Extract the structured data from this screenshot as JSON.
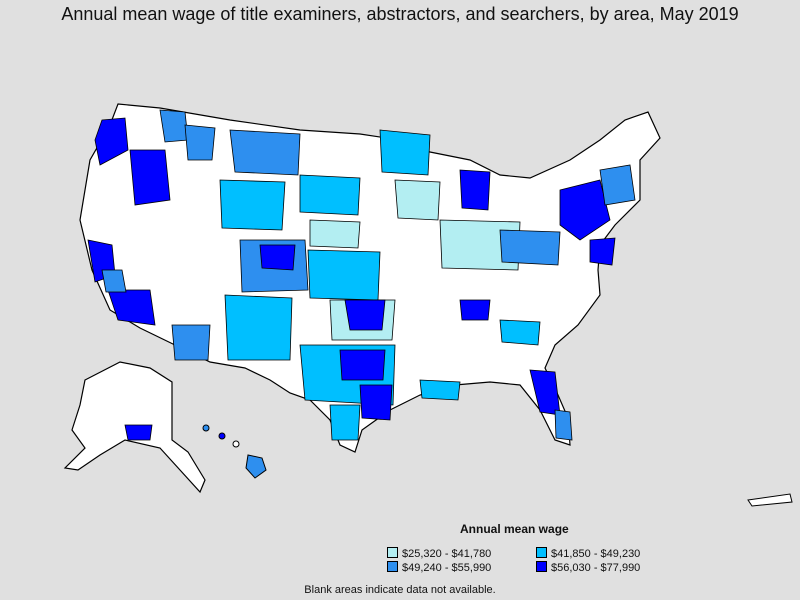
{
  "title": "Annual mean wage of title examiners, abstractors, and searchers, by area, May 2019",
  "legend": {
    "title": "Annual mean wage",
    "items": [
      {
        "label": "$25,320 - $41,780",
        "color": "#b3eef2"
      },
      {
        "label": "$41,850 - $49,230",
        "color": "#00bfff"
      },
      {
        "label": "$49,240 - $55,990",
        "color": "#2e8fef"
      },
      {
        "label": "$56,030 - $77,990",
        "color": "#0000ff"
      }
    ]
  },
  "note": "Blank areas indicate data not available.",
  "colors": {
    "background": "#e0e0e0",
    "blank": "#ffffff",
    "border": "#000000"
  }
}
